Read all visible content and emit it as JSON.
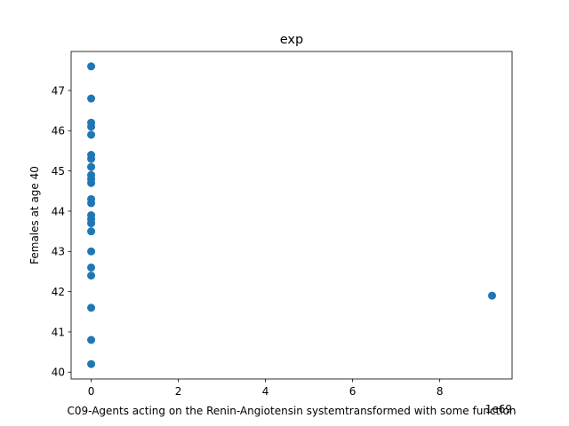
{
  "chart_data": {
    "type": "scatter",
    "title": "exp",
    "xlabel": "C09-Agents acting on the Renin-Angiotensin systemtransformed with some function",
    "ylabel": "Females at age 40",
    "x_offset_label": "1e69",
    "xlim": [
      -0.46,
      9.66
    ],
    "ylim": [
      39.83,
      47.97
    ],
    "xticks": [
      0,
      2,
      4,
      6,
      8
    ],
    "yticks": [
      40,
      41,
      42,
      43,
      44,
      45,
      46,
      47
    ],
    "grid": false,
    "marker_color": "#1f77b4",
    "points": [
      {
        "x": 0,
        "y": 47.6
      },
      {
        "x": 0,
        "y": 46.8
      },
      {
        "x": 0,
        "y": 46.2
      },
      {
        "x": 0,
        "y": 46.1
      },
      {
        "x": 0,
        "y": 45.9
      },
      {
        "x": 0,
        "y": 45.4
      },
      {
        "x": 0,
        "y": 45.3
      },
      {
        "x": 0,
        "y": 45.1
      },
      {
        "x": 0,
        "y": 44.9
      },
      {
        "x": 0,
        "y": 44.8
      },
      {
        "x": 0,
        "y": 44.7
      },
      {
        "x": 0,
        "y": 44.3
      },
      {
        "x": 0,
        "y": 44.2
      },
      {
        "x": 0,
        "y": 43.9
      },
      {
        "x": 0,
        "y": 43.8
      },
      {
        "x": 0,
        "y": 43.7
      },
      {
        "x": 0,
        "y": 43.5
      },
      {
        "x": 0,
        "y": 43.0
      },
      {
        "x": 0,
        "y": 42.6
      },
      {
        "x": 0,
        "y": 42.4
      },
      {
        "x": 0,
        "y": 41.6
      },
      {
        "x": 0,
        "y": 40.8
      },
      {
        "x": 0,
        "y": 40.2
      },
      {
        "x": 9.2,
        "y": 41.9
      }
    ]
  }
}
